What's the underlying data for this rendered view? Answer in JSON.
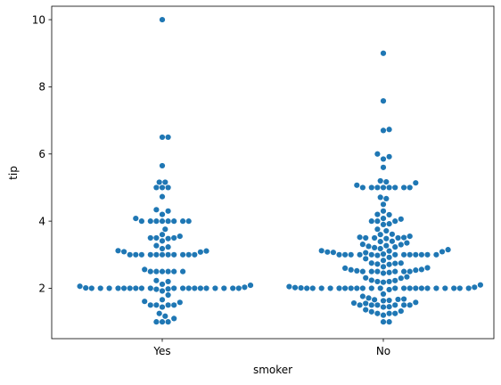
{
  "chart_data": {
    "type": "scatter",
    "subtype": "swarm",
    "title": "",
    "xlabel": "smoker",
    "ylabel": "tip",
    "categories": [
      "Yes",
      "No"
    ],
    "ylim": [
      0.5,
      10.4
    ],
    "yticks": [
      2,
      4,
      6,
      8,
      10
    ],
    "grid": false,
    "point_color": "#1f77b4",
    "series": [
      {
        "category": "Yes",
        "values": [
          10.0,
          6.5,
          6.5,
          5.65,
          5.16,
          5.16,
          5.0,
          5.0,
          5.0,
          4.73,
          4.34,
          4.3,
          4.2,
          4.08,
          4.0,
          4.0,
          4.0,
          4.0,
          4.0,
          4.0,
          4.0,
          4.0,
          3.76,
          3.6,
          3.55,
          3.5,
          3.5,
          3.5,
          3.48,
          3.41,
          3.27,
          3.23,
          3.18,
          3.12,
          3.11,
          3.09,
          3.08,
          3.0,
          3.0,
          3.0,
          3.0,
          3.0,
          3.0,
          3.0,
          3.0,
          3.0,
          3.0,
          3.0,
          2.56,
          2.5,
          2.5,
          2.5,
          2.5,
          2.5,
          2.5,
          2.23,
          2.2,
          2.12,
          2.09,
          2.06,
          2.03,
          2.01,
          2.0,
          2.0,
          2.0,
          2.0,
          2.0,
          2.0,
          2.0,
          2.0,
          2.0,
          2.0,
          2.0,
          2.0,
          2.0,
          2.0,
          2.0,
          2.0,
          2.0,
          2.0,
          2.0,
          1.98,
          1.97,
          1.92,
          1.8,
          1.66,
          1.61,
          1.58,
          1.5,
          1.5,
          1.5,
          1.5,
          1.44,
          1.25,
          1.17,
          1.1,
          1.0,
          1.0,
          1.0
        ]
      },
      {
        "category": "No",
        "values": [
          9.0,
          7.58,
          6.73,
          6.7,
          6.0,
          5.92,
          5.85,
          5.6,
          5.2,
          5.17,
          5.14,
          5.07,
          5.0,
          5.0,
          5.0,
          5.0,
          5.0,
          5.0,
          5.0,
          5.0,
          4.71,
          4.67,
          4.5,
          4.3,
          4.2,
          4.19,
          4.08,
          4.06,
          4.0,
          4.0,
          4.0,
          3.92,
          3.9,
          3.76,
          3.71,
          3.61,
          3.6,
          3.55,
          3.52,
          3.51,
          3.5,
          3.5,
          3.5,
          3.48,
          3.4,
          3.39,
          3.35,
          3.31,
          3.3,
          3.27,
          3.25,
          3.23,
          3.21,
          3.18,
          3.15,
          3.12,
          3.11,
          3.09,
          3.08,
          3.07,
          3.06,
          3.02,
          3.0,
          3.0,
          3.0,
          3.0,
          3.0,
          3.0,
          3.0,
          3.0,
          3.0,
          3.0,
          3.0,
          3.0,
          2.98,
          2.92,
          2.88,
          2.83,
          2.75,
          2.75,
          2.74,
          2.72,
          2.71,
          2.64,
          2.61,
          2.6,
          2.56,
          2.55,
          2.54,
          2.52,
          2.5,
          2.5,
          2.5,
          2.5,
          2.5,
          2.5,
          2.47,
          2.45,
          2.34,
          2.31,
          2.3,
          2.24,
          2.23,
          2.2,
          2.2,
          2.18,
          2.1,
          2.05,
          2.03,
          2.02,
          2.01,
          2.0,
          2.0,
          2.0,
          2.0,
          2.0,
          2.0,
          2.0,
          2.0,
          2.0,
          2.0,
          2.0,
          2.0,
          2.0,
          2.0,
          2.0,
          2.0,
          2.0,
          2.0,
          2.0,
          2.0,
          2.0,
          2.0,
          1.96,
          1.83,
          1.76,
          1.71,
          1.68,
          1.67,
          1.66,
          1.64,
          1.63,
          1.58,
          1.56,
          1.55,
          1.5,
          1.5,
          1.5,
          1.5,
          1.5,
          1.5,
          1.45,
          1.44,
          1.36,
          1.32,
          1.3,
          1.25,
          1.25,
          1.25,
          1.2,
          1.0,
          1.0
        ]
      }
    ]
  }
}
